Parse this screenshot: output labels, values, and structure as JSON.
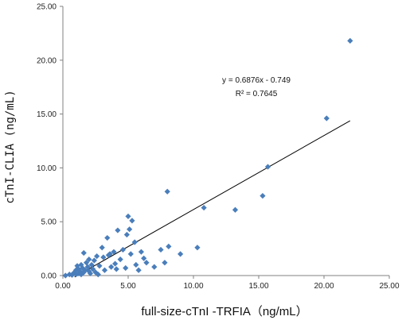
{
  "chart_data": {
    "type": "scatter",
    "xlabel": "full-size-cTnI -TRFIA（ng/mL）",
    "ylabel": "cTnI-CLIA (ng/mL)",
    "xlim": [
      0,
      25
    ],
    "ylim": [
      0,
      25
    ],
    "x_ticks": [
      "0.00",
      "5.00",
      "10.00",
      "15.00",
      "20.00",
      "25.00"
    ],
    "y_ticks": [
      "0.00",
      "5.00",
      "10.00",
      "15.00",
      "20.00",
      "25.00"
    ],
    "grid": false,
    "legend": false,
    "marker": "diamond",
    "marker_color": "#4a7ebb",
    "trendline": {
      "slope": 0.6876,
      "intercept": -0.749,
      "x_start": 0.9,
      "x_end": 22.0
    },
    "equation_text": "y = 0.6876x - 0.749",
    "r2_text": "R² = 0.7645",
    "points": [
      {
        "x": 0.2,
        "y": 0.0
      },
      {
        "x": 0.5,
        "y": 0.1
      },
      {
        "x": 0.7,
        "y": 0.05
      },
      {
        "x": 0.8,
        "y": 0.2
      },
      {
        "x": 0.9,
        "y": 0.3
      },
      {
        "x": 1.0,
        "y": 0.1
      },
      {
        "x": 1.0,
        "y": 0.5
      },
      {
        "x": 1.1,
        "y": 0.9
      },
      {
        "x": 1.2,
        "y": 0.2
      },
      {
        "x": 1.2,
        "y": 0.6
      },
      {
        "x": 1.3,
        "y": 0.4
      },
      {
        "x": 1.4,
        "y": 1.0
      },
      {
        "x": 1.4,
        "y": 0.1
      },
      {
        "x": 1.5,
        "y": 0.7
      },
      {
        "x": 1.6,
        "y": 2.1
      },
      {
        "x": 1.6,
        "y": 0.3
      },
      {
        "x": 1.7,
        "y": 0.5
      },
      {
        "x": 1.8,
        "y": 1.2
      },
      {
        "x": 1.9,
        "y": 0.8
      },
      {
        "x": 2.0,
        "y": 0.4
      },
      {
        "x": 2.0,
        "y": 1.5
      },
      {
        "x": 2.1,
        "y": 0.2
      },
      {
        "x": 2.2,
        "y": 1.0
      },
      {
        "x": 2.3,
        "y": 0.6
      },
      {
        "x": 2.4,
        "y": 1.4
      },
      {
        "x": 2.5,
        "y": 0.3
      },
      {
        "x": 2.6,
        "y": 1.8
      },
      {
        "x": 2.7,
        "y": 0.1
      },
      {
        "x": 2.8,
        "y": 0.9
      },
      {
        "x": 3.0,
        "y": 2.6
      },
      {
        "x": 3.1,
        "y": 1.7
      },
      {
        "x": 3.2,
        "y": 0.5
      },
      {
        "x": 3.4,
        "y": 3.5
      },
      {
        "x": 3.5,
        "y": 1.9
      },
      {
        "x": 3.6,
        "y": 2.0
      },
      {
        "x": 3.7,
        "y": 0.8
      },
      {
        "x": 3.9,
        "y": 2.2
      },
      {
        "x": 4.0,
        "y": 1.1
      },
      {
        "x": 4.1,
        "y": 0.6
      },
      {
        "x": 4.2,
        "y": 4.2
      },
      {
        "x": 4.4,
        "y": 1.5
      },
      {
        "x": 4.6,
        "y": 2.4
      },
      {
        "x": 4.8,
        "y": 0.7
      },
      {
        "x": 4.9,
        "y": 3.8
      },
      {
        "x": 5.0,
        "y": 5.5
      },
      {
        "x": 5.1,
        "y": 4.3
      },
      {
        "x": 5.2,
        "y": 2.0
      },
      {
        "x": 5.3,
        "y": 5.1
      },
      {
        "x": 5.5,
        "y": 3.1
      },
      {
        "x": 5.6,
        "y": 1.0
      },
      {
        "x": 5.8,
        "y": 0.5
      },
      {
        "x": 6.0,
        "y": 2.2
      },
      {
        "x": 6.2,
        "y": 1.6
      },
      {
        "x": 6.4,
        "y": 1.2
      },
      {
        "x": 7.0,
        "y": 0.8
      },
      {
        "x": 7.5,
        "y": 2.4
      },
      {
        "x": 7.8,
        "y": 1.2
      },
      {
        "x": 8.0,
        "y": 7.8
      },
      {
        "x": 8.1,
        "y": 2.7
      },
      {
        "x": 9.0,
        "y": 2.0
      },
      {
        "x": 10.3,
        "y": 2.6
      },
      {
        "x": 10.8,
        "y": 6.3
      },
      {
        "x": 13.2,
        "y": 6.1
      },
      {
        "x": 15.3,
        "y": 7.4
      },
      {
        "x": 15.7,
        "y": 10.1
      },
      {
        "x": 20.2,
        "y": 14.6
      },
      {
        "x": 22.0,
        "y": 21.8
      }
    ]
  }
}
